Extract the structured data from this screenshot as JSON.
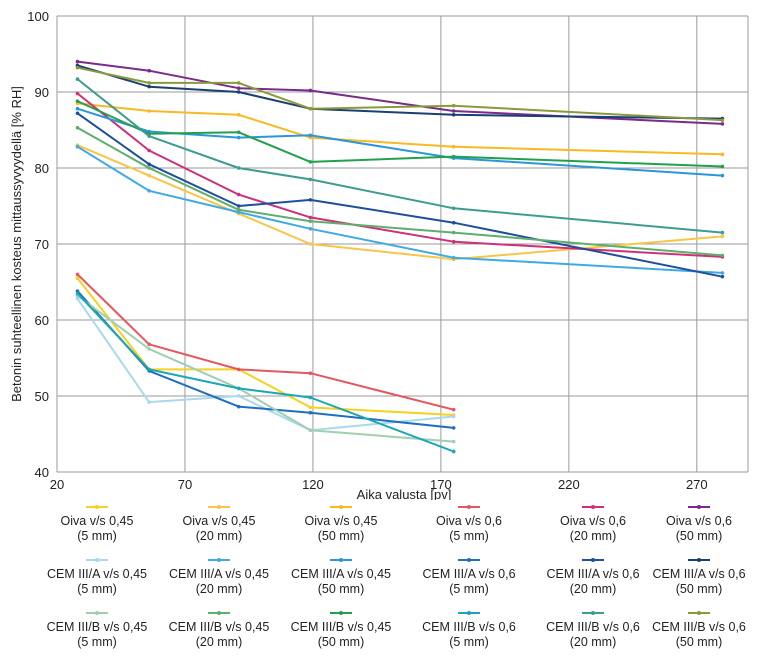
{
  "chart_data": {
    "type": "line",
    "title": "",
    "xlabel": "Aika valusta [pv]",
    "ylabel": "Betonin suhteellinen kosteus mittaussyvyydellä [% RH]",
    "xlim": [
      20,
      290
    ],
    "ylim": [
      40,
      100
    ],
    "xticks": [
      20,
      70,
      120,
      170,
      220,
      270
    ],
    "yticks": [
      40,
      50,
      60,
      70,
      80,
      90,
      100
    ],
    "grid": true,
    "legend_position": "bottom",
    "series": [
      {
        "name": "Oiva v/s 0,45\n(5 mm)",
        "color": "#f5d21f",
        "x": [
          28,
          56,
          91,
          119,
          175
        ],
        "y": [
          65.5,
          53.5,
          53.5,
          48.5,
          47.5
        ]
      },
      {
        "name": "Oiva v/s 0,45\n(20 mm)",
        "color": "#f7c548",
        "x": [
          28,
          56,
          91,
          119,
          175,
          280
        ],
        "y": [
          83.0,
          79.0,
          74.0,
          70.0,
          68.0,
          71.0
        ]
      },
      {
        "name": "Oiva v/s 0,45\n(50 mm)",
        "color": "#f9b923",
        "x": [
          28,
          56,
          91,
          119,
          175,
          280
        ],
        "y": [
          88.5,
          87.5,
          87.0,
          84.0,
          82.8,
          81.8
        ]
      },
      {
        "name": "Oiva v/s 0,6\n(5 mm)",
        "color": "#e5575f",
        "x": [
          28,
          56,
          91,
          119,
          175
        ],
        "y": [
          66.0,
          56.8,
          53.5,
          53.0,
          48.2
        ]
      },
      {
        "name": "Oiva v/s 0,6\n(20 mm)",
        "color": "#cf2f78",
        "x": [
          28,
          56,
          91,
          119,
          175,
          280
        ],
        "y": [
          89.8,
          82.3,
          76.5,
          73.5,
          70.3,
          68.3
        ]
      },
      {
        "name": "Oiva v/s 0,6\n(50 mm)",
        "color": "#7a2a8a",
        "x": [
          28,
          56,
          91,
          119,
          175,
          280
        ],
        "y": [
          94.0,
          92.8,
          90.5,
          90.2,
          87.5,
          85.8
        ]
      },
      {
        "name": "CEM III/A v/s 0,45\n(5 mm)",
        "color": "#a9d8ef",
        "x": [
          28,
          56,
          91,
          119,
          175
        ],
        "y": [
          62.8,
          49.2,
          50.0,
          45.5,
          47.3
        ]
      },
      {
        "name": "CEM III/A v/s 0,45\n(20 mm)",
        "color": "#3fa9e6",
        "x": [
          28,
          56,
          91,
          119,
          175,
          280
        ],
        "y": [
          82.8,
          77.0,
          74.2,
          72.0,
          68.2,
          66.2
        ]
      },
      {
        "name": "CEM III/A v/s 0,45\n(50 mm)",
        "color": "#2b97d9",
        "x": [
          28,
          56,
          91,
          119,
          175,
          280
        ],
        "y": [
          87.8,
          84.8,
          84.0,
          84.3,
          81.3,
          79.0
        ]
      },
      {
        "name": "CEM III/A v/s 0,6\n(5 mm)",
        "color": "#1f6fbf",
        "x": [
          28,
          56,
          91,
          119,
          175
        ],
        "y": [
          63.8,
          53.3,
          48.6,
          47.8,
          45.8
        ]
      },
      {
        "name": "CEM III/A v/s 0,6\n(20 mm)",
        "color": "#1d4f9c",
        "x": [
          28,
          56,
          91,
          119,
          175,
          280
        ],
        "y": [
          87.2,
          80.5,
          75.0,
          75.8,
          72.8,
          65.7
        ]
      },
      {
        "name": "CEM III/A v/s 0,6\n(50 mm)",
        "color": "#1a3f73",
        "x": [
          28,
          56,
          91,
          119,
          175,
          280
        ],
        "y": [
          93.5,
          90.7,
          90.0,
          87.8,
          87.0,
          86.5
        ]
      },
      {
        "name": "CEM III/B v/s 0,45\n(5 mm)",
        "color": "#9fcfb0",
        "x": [
          28,
          56,
          91,
          119,
          175
        ],
        "y": [
          63.2,
          56.2,
          51.0,
          45.5,
          44.0
        ]
      },
      {
        "name": "CEM III/B v/s 0,45\n(20 mm)",
        "color": "#5fae6e",
        "x": [
          28,
          56,
          91,
          119,
          175,
          280
        ],
        "y": [
          85.3,
          80.0,
          74.5,
          73.0,
          71.5,
          68.5
        ]
      },
      {
        "name": "CEM III/B v/s 0,45\n(50 mm)",
        "color": "#23a04f",
        "x": [
          28,
          56,
          91,
          119,
          175,
          280
        ],
        "y": [
          88.8,
          84.5,
          84.7,
          80.8,
          81.5,
          80.2
        ]
      },
      {
        "name": "CEM III/B v/s 0,6\n(5 mm)",
        "color": "#1aa6b5",
        "x": [
          28,
          56,
          91,
          119,
          175
        ],
        "y": [
          63.5,
          53.5,
          51.0,
          49.8,
          42.7
        ]
      },
      {
        "name": "CEM III/B v/s 0,6\n(20 mm)",
        "color": "#3d9c90",
        "x": [
          28,
          56,
          91,
          119,
          175,
          280
        ],
        "y": [
          91.7,
          84.2,
          80.0,
          78.5,
          74.7,
          71.5
        ]
      },
      {
        "name": "CEM III/B v/s 0,6\n(50 mm)",
        "color": "#8a9a3b",
        "x": [
          28,
          56,
          91,
          119,
          175,
          280
        ],
        "y": [
          93.2,
          91.2,
          91.2,
          87.8,
          88.2,
          86.3
        ]
      }
    ]
  }
}
